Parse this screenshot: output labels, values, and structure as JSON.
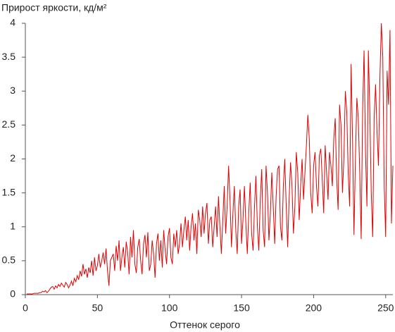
{
  "chart_data": {
    "type": "line",
    "title": "Прирост яркости, кд/м²",
    "x_label": "Оттенок серого",
    "color": "#e00000",
    "xlim": [
      0,
      255
    ],
    "xticks": [
      0,
      50,
      100,
      150,
      200,
      250
    ],
    "ylim": [
      0,
      4
    ],
    "yticks": [
      0,
      0.5,
      1,
      1.5,
      2,
      2.5,
      3,
      3.5,
      4
    ],
    "grid": false,
    "x": [
      1,
      2,
      3,
      4,
      5,
      6,
      7,
      8,
      9,
      10,
      11,
      12,
      13,
      14,
      15,
      16,
      17,
      18,
      19,
      20,
      21,
      22,
      23,
      24,
      25,
      26,
      27,
      28,
      29,
      30,
      31,
      32,
      33,
      34,
      35,
      36,
      37,
      38,
      39,
      40,
      41,
      42,
      43,
      44,
      45,
      46,
      47,
      48,
      49,
      50,
      51,
      52,
      53,
      54,
      55,
      56,
      57,
      58,
      59,
      60,
      61,
      62,
      63,
      64,
      65,
      66,
      67,
      68,
      69,
      70,
      71,
      72,
      73,
      74,
      75,
      76,
      77,
      78,
      79,
      80,
      81,
      82,
      83,
      84,
      85,
      86,
      87,
      88,
      89,
      90,
      91,
      92,
      93,
      94,
      95,
      96,
      97,
      98,
      99,
      100,
      101,
      102,
      103,
      104,
      105,
      106,
      107,
      108,
      109,
      110,
      111,
      112,
      113,
      114,
      115,
      116,
      117,
      118,
      119,
      120,
      121,
      122,
      123,
      124,
      125,
      126,
      127,
      128,
      129,
      130,
      131,
      132,
      133,
      134,
      135,
      136,
      137,
      138,
      139,
      140,
      141,
      142,
      143,
      144,
      145,
      146,
      147,
      148,
      149,
      150,
      151,
      152,
      153,
      154,
      155,
      156,
      157,
      158,
      159,
      160,
      161,
      162,
      163,
      164,
      165,
      166,
      167,
      168,
      169,
      170,
      171,
      172,
      173,
      174,
      175,
      176,
      177,
      178,
      179,
      180,
      181,
      182,
      183,
      184,
      185,
      186,
      187,
      188,
      189,
      190,
      191,
      192,
      193,
      194,
      195,
      196,
      197,
      198,
      199,
      200,
      201,
      202,
      203,
      204,
      205,
      206,
      207,
      208,
      209,
      210,
      211,
      212,
      213,
      214,
      215,
      216,
      217,
      218,
      219,
      220,
      221,
      222,
      223,
      224,
      225,
      226,
      227,
      228,
      229,
      230,
      231,
      232,
      233,
      234,
      235,
      236,
      237,
      238,
      239,
      240,
      241,
      242,
      243,
      244,
      245,
      246,
      247,
      248,
      249,
      250,
      251,
      252,
      253,
      254,
      255
    ],
    "values": [
      0.01,
      0.01,
      0.01,
      0.01,
      0.01,
      0.02,
      0.02,
      0.02,
      0.02,
      0.03,
      0.03,
      0.05,
      0.04,
      0.06,
      0.03,
      0.05,
      0.08,
      0.11,
      0.12,
      0.08,
      0.13,
      0.1,
      0.15,
      0.12,
      0.17,
      0.14,
      0.11,
      0.18,
      0.15,
      0.1,
      0.14,
      0.2,
      0.13,
      0.24,
      0.19,
      0.28,
      0.22,
      0.35,
      0.27,
      0.45,
      0.3,
      0.38,
      0.25,
      0.4,
      0.32,
      0.5,
      0.28,
      0.55,
      0.35,
      0.43,
      0.6,
      0.4,
      0.5,
      0.62,
      0.45,
      0.68,
      0.35,
      0.13,
      0.5,
      0.55,
      0.6,
      0.35,
      0.72,
      0.5,
      0.8,
      0.35,
      0.55,
      0.7,
      0.4,
      0.78,
      0.62,
      0.3,
      0.85,
      0.55,
      0.95,
      0.45,
      0.32,
      0.7,
      0.82,
      0.5,
      0.3,
      0.75,
      0.88,
      0.55,
      0.92,
      0.35,
      0.45,
      0.8,
      0.6,
      0.25,
      0.75,
      0.9,
      0.5,
      0.8,
      0.4,
      0.95,
      0.65,
      0.45,
      0.85,
      0.98,
      0.55,
      0.45,
      0.9,
      0.7,
      0.95,
      0.6,
      0.75,
      1.05,
      0.7,
      0.95,
      1.15,
      0.8,
      1.1,
      0.65,
      1.0,
      1.2,
      0.8,
      1.05,
      0.6,
      1.25,
      1.1,
      0.85,
      1.3,
      0.9,
      1.2,
      1.35,
      0.75,
      1.1,
      1.15,
      0.7,
      1.0,
      1.3,
      0.85,
      1.45,
      1.0,
      0.6,
      1.1,
      1.6,
      0.9,
      1.3,
      1.9,
      1.4,
      0.7,
      1.2,
      1.6,
      0.95,
      0.6,
      1.3,
      1.55,
      0.75,
      1.1,
      1.6,
      1.05,
      0.6,
      1.2,
      1.65,
      0.9,
      0.65,
      1.3,
      1.75,
      1.0,
      0.65,
      1.4,
      1.85,
      0.95,
      0.7,
      1.9,
      1.5,
      0.8,
      1.2,
      1.8,
      1.3,
      0.75,
      1.45,
      1.85,
      1.9,
      1.0,
      0.8,
      1.6,
      2.0,
      1.3,
      0.7,
      1.4,
      1.95,
      1.6,
      0.9,
      1.3,
      2.1,
      1.8,
      1.1,
      1.6,
      2.0,
      1.4,
      1.8,
      2.2,
      2.65,
      2.3,
      1.5,
      1.2,
      1.9,
      2.1,
      1.6,
      1.3,
      2.05,
      2.15,
      1.7,
      1.2,
      2.2,
      1.8,
      1.4,
      2.1,
      1.9,
      1.6,
      2.3,
      2.6,
      1.7,
      1.25,
      2.8,
      2.5,
      1.5,
      2.0,
      3.0,
      2.7,
      1.8,
      1.3,
      3.4,
      2.3,
      0.88,
      2.0,
      2.9,
      2.6,
      1.8,
      0.82,
      2.7,
      3.6,
      2.1,
      1.3,
      3.6,
      2.7,
      1.5,
      0.85,
      2.6,
      3.1,
      2.4,
      1.9,
      3.2,
      4.0,
      3.5,
      1.6,
      0.85,
      3.3,
      2.8,
      3.9,
      1.05,
      1.9
    ]
  }
}
